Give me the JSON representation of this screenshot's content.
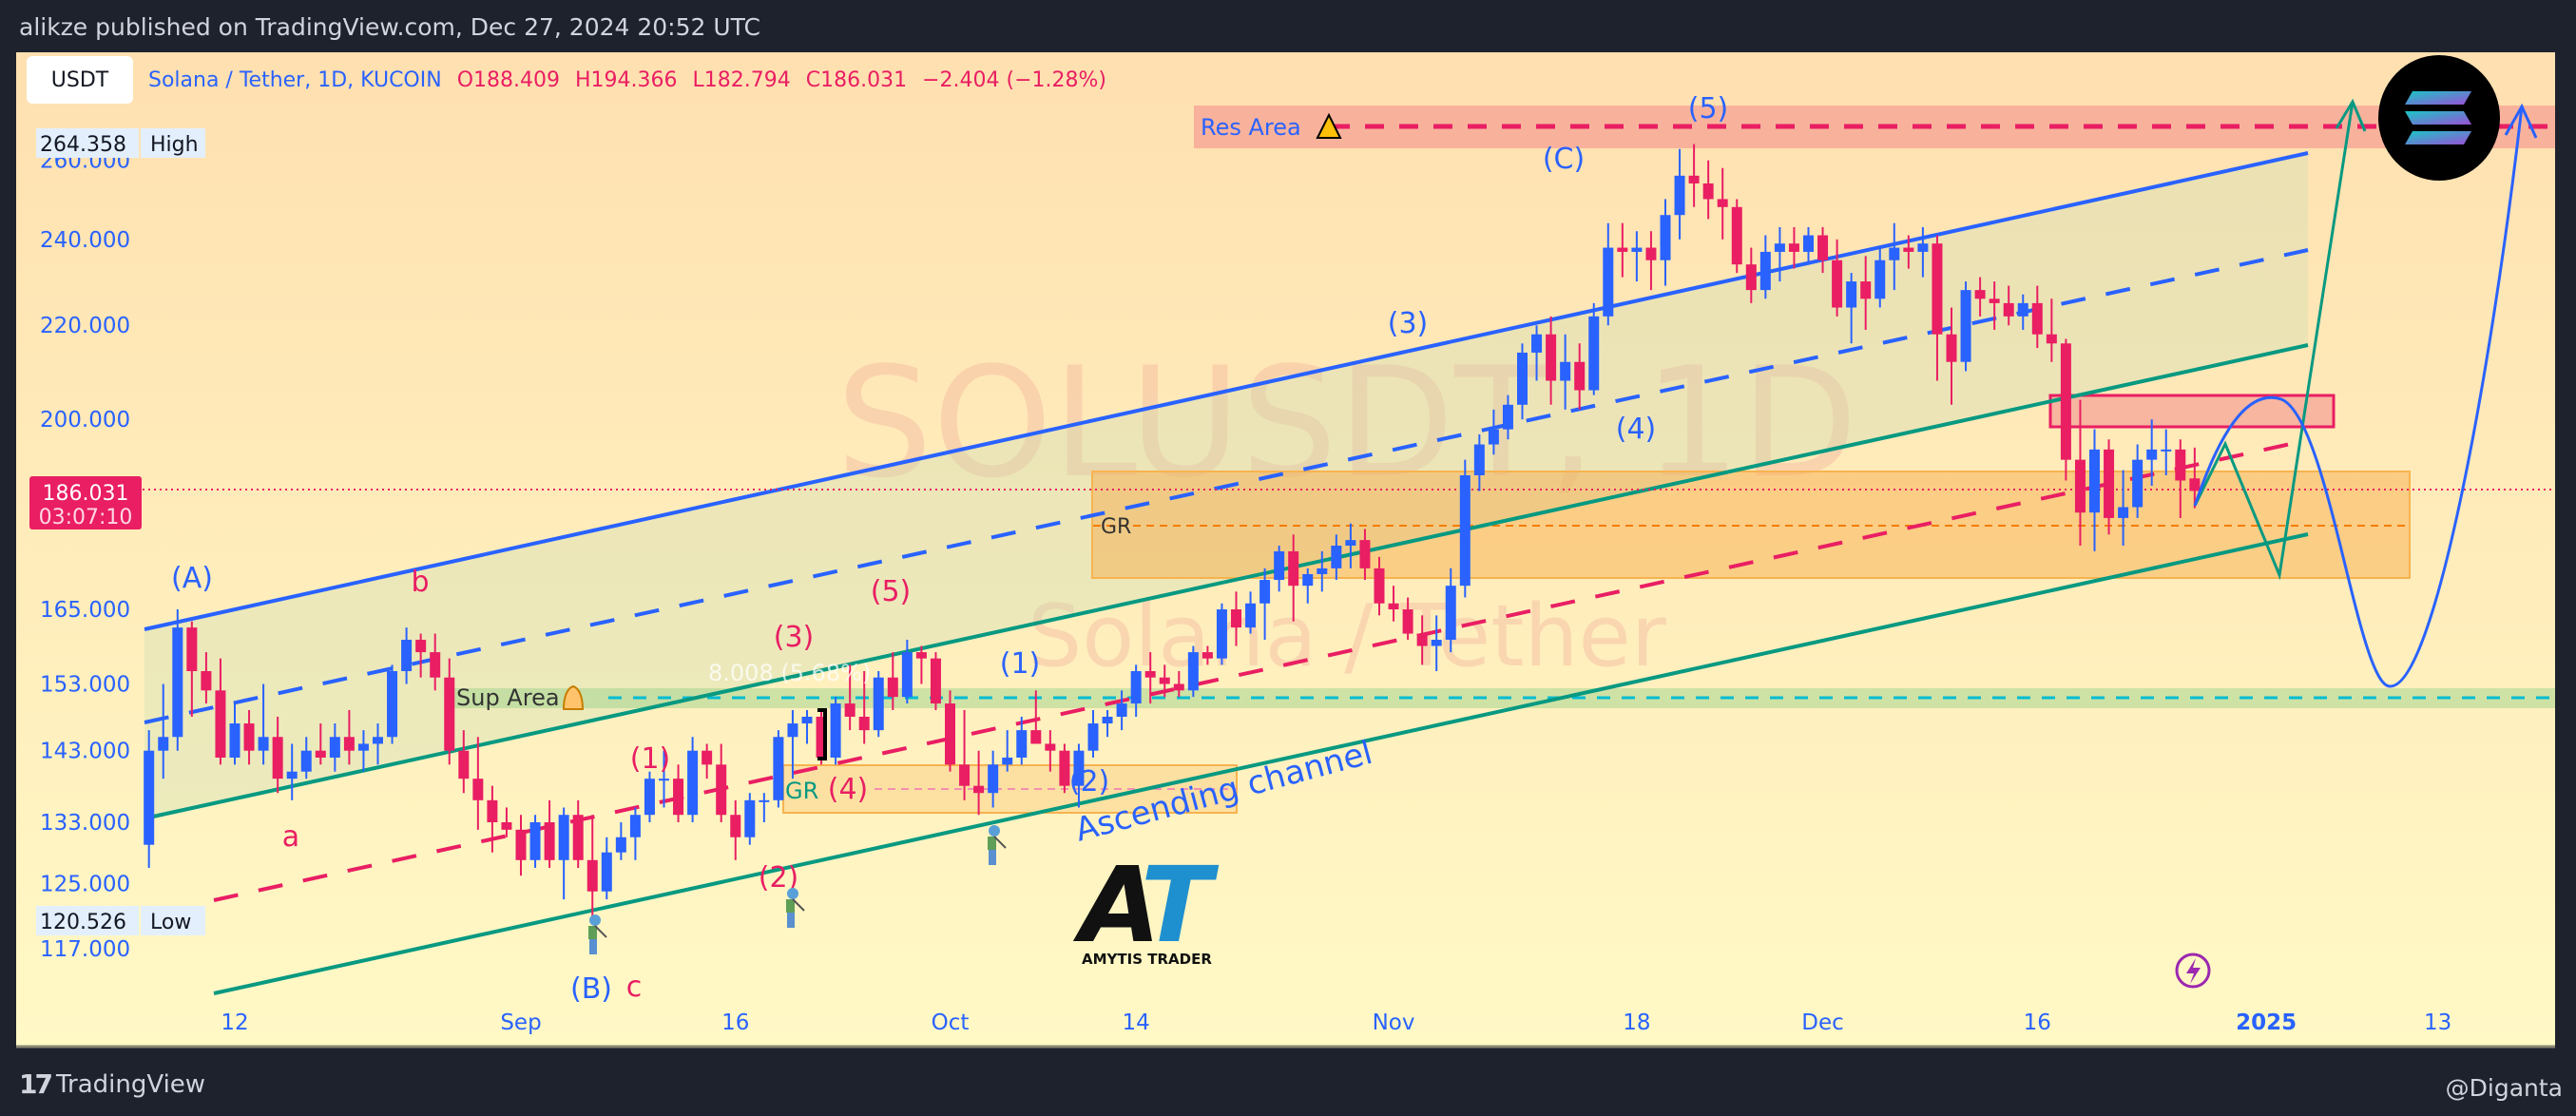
{
  "header": {
    "title": "alikze published on TradingView.com, Dec 27, 2024 20:52 UTC",
    "currency": "USDT",
    "symbol": "Solana / Tether, 1D, KUCOIN",
    "open": "O188.409",
    "high": "H194.366",
    "low": "L182.794",
    "close": "C186.031",
    "change": "−2.404 (−1.28%)"
  },
  "price_scale": {
    "high_value": "264.358",
    "high_label": "High",
    "low_value": "120.526",
    "low_label": "Low",
    "last_price": "186.031",
    "countdown": "03:07:10"
  },
  "watermark": {
    "symbol": "SOLUSDT, 1D",
    "name": "Solana / Tether"
  },
  "annotations": {
    "res_area": "Res Area",
    "sup_area": "Sup Area",
    "gr_upper": "GR",
    "gr_lower": "GR",
    "ascending_channel": "Ascending channel",
    "measure": "8.008 (5.68%)",
    "waves": {
      "A": "(A)",
      "b": "b",
      "a": "a",
      "B": "(B)",
      "c": "c",
      "r1": "(1)",
      "r2": "(2)",
      "r3": "(3)",
      "r4": "(4)",
      "r5": "(5)",
      "b1": "(1)",
      "b2": "(2)",
      "b3": "(3)",
      "b4": "(4)",
      "b5": "(5)",
      "C": "(C)"
    },
    "logo_text": "AMYTIS TRADER"
  },
  "footer": {
    "brand": "TradingView",
    "user": "@Diganta"
  },
  "colors": {
    "up": "#2962ff",
    "down": "#e91e63",
    "channel_blue": "#2962ff",
    "channel_green": "#089981"
  },
  "chart_data": {
    "type": "candlestick",
    "title": "Solana / Tether, 1D, KUCOIN",
    "start_date": "2024-08-06",
    "scale": "log",
    "ylim": [
      112,
      272
    ],
    "y_ticks": [
      260,
      240,
      220,
      200,
      165,
      153,
      143,
      133,
      125,
      117
    ],
    "x_ticks": [
      {
        "label": "12",
        "date": "2024-08-12"
      },
      {
        "label": "Sep",
        "date": "2024-09-01"
      },
      {
        "label": "16",
        "date": "2024-09-16"
      },
      {
        "label": "Oct",
        "date": "2024-10-01"
      },
      {
        "label": "14",
        "date": "2024-10-14"
      },
      {
        "label": "Nov",
        "date": "2024-11-01"
      },
      {
        "label": "18",
        "date": "2024-11-18"
      },
      {
        "label": "Dec",
        "date": "2024-12-01"
      },
      {
        "label": "16",
        "date": "2024-12-16"
      },
      {
        "label": "2025",
        "date": "2025-01-01"
      },
      {
        "label": "13",
        "date": "2025-01-13"
      }
    ],
    "ohlc": [
      [
        130,
        146,
        127,
        143
      ],
      [
        143,
        153,
        139,
        145
      ],
      [
        145,
        165,
        143,
        162
      ],
      [
        162,
        163,
        148,
        155
      ],
      [
        155,
        158,
        150,
        152
      ],
      [
        152,
        157,
        141,
        142
      ],
      [
        142,
        150,
        141,
        147
      ],
      [
        147,
        149,
        141,
        143
      ],
      [
        143,
        153,
        141,
        145
      ],
      [
        145,
        148,
        137,
        139
      ],
      [
        139,
        144,
        136,
        140
      ],
      [
        140,
        145,
        139,
        143
      ],
      [
        143,
        147,
        141,
        142
      ],
      [
        142,
        147,
        140,
        145
      ],
      [
        145,
        149,
        141,
        143
      ],
      [
        143,
        146,
        140,
        144
      ],
      [
        144,
        147,
        141,
        145
      ],
      [
        145,
        156,
        144,
        155
      ],
      [
        155,
        162,
        153,
        160
      ],
      [
        160,
        161,
        154,
        158
      ],
      [
        158,
        161,
        152,
        154
      ],
      [
        154,
        157,
        141,
        143
      ],
      [
        143,
        146,
        137,
        139
      ],
      [
        139,
        145,
        132,
        136
      ],
      [
        136,
        138,
        129,
        133
      ],
      [
        133,
        135,
        131,
        132
      ],
      [
        132,
        134,
        126,
        128
      ],
      [
        128,
        134,
        127,
        133
      ],
      [
        133,
        136,
        127,
        128
      ],
      [
        128,
        135,
        123,
        134
      ],
      [
        134,
        136,
        127,
        128
      ],
      [
        128,
        134,
        120.526,
        124
      ],
      [
        124,
        131,
        123,
        129
      ],
      [
        129,
        133,
        128,
        131
      ],
      [
        131,
        135,
        128,
        134
      ],
      [
        134,
        140,
        133,
        139
      ],
      [
        139,
        143,
        135,
        139
      ],
      [
        139,
        141,
        133,
        134
      ],
      [
        134,
        145,
        133,
        143
      ],
      [
        143,
        144,
        139,
        141
      ],
      [
        141,
        144,
        133,
        134
      ],
      [
        134,
        136,
        128,
        131
      ],
      [
        131,
        137,
        130,
        136
      ],
      [
        136,
        137,
        133,
        136
      ],
      [
        136,
        146,
        135,
        145
      ],
      [
        145,
        149,
        139,
        147
      ],
      [
        147,
        149,
        144,
        148
      ],
      [
        148,
        149,
        141,
        142
      ],
      [
        142,
        151,
        141,
        150
      ],
      [
        150,
        156,
        146,
        148
      ],
      [
        148,
        155,
        144,
        146
      ],
      [
        146,
        155,
        145,
        154
      ],
      [
        154,
        158,
        149,
        151
      ],
      [
        151,
        160,
        150,
        158
      ],
      [
        158,
        159,
        153,
        157
      ],
      [
        157,
        158,
        149,
        150
      ],
      [
        150,
        152,
        140,
        141
      ],
      [
        141,
        149,
        136,
        138
      ],
      [
        138,
        143,
        134,
        137
      ],
      [
        137,
        143,
        135,
        141
      ],
      [
        141,
        146,
        140,
        142
      ],
      [
        142,
        148,
        141,
        146
      ],
      [
        146,
        152,
        144,
        144
      ],
      [
        144,
        146,
        140,
        143
      ],
      [
        143,
        144,
        137,
        138
      ],
      [
        138,
        144,
        135,
        143
      ],
      [
        143,
        149,
        142,
        147
      ],
      [
        147,
        149,
        145,
        148
      ],
      [
        148,
        152,
        146,
        150
      ],
      [
        150,
        156,
        148,
        155
      ],
      [
        155,
        158,
        150,
        154
      ],
      [
        154,
        156,
        151,
        153
      ],
      [
        153,
        155,
        151,
        152
      ],
      [
        152,
        159,
        151,
        158
      ],
      [
        158,
        159,
        156,
        157
      ],
      [
        157,
        166,
        156,
        165
      ],
      [
        165,
        168,
        159,
        162
      ],
      [
        162,
        168,
        161,
        166
      ],
      [
        166,
        172,
        160,
        170
      ],
      [
        170,
        176,
        168,
        175
      ],
      [
        175,
        178,
        163,
        169
      ],
      [
        169,
        172,
        166,
        171
      ],
      [
        171,
        175,
        168,
        172
      ],
      [
        172,
        178,
        170,
        176
      ],
      [
        176,
        180,
        172,
        177
      ],
      [
        177,
        179,
        170,
        172
      ],
      [
        172,
        174,
        164,
        166
      ],
      [
        166,
        169,
        163,
        165
      ],
      [
        165,
        167,
        160,
        161
      ],
      [
        161,
        164,
        156,
        159
      ],
      [
        159,
        164,
        155,
        160
      ],
      [
        160,
        172,
        158,
        169
      ],
      [
        169,
        192,
        167,
        189
      ],
      [
        189,
        197,
        186,
        195
      ],
      [
        195,
        202,
        193,
        198
      ],
      [
        198,
        205,
        196,
        203
      ],
      [
        203,
        216,
        200,
        214
      ],
      [
        214,
        220,
        208,
        218
      ],
      [
        218,
        222,
        203,
        208
      ],
      [
        208,
        218,
        202,
        212
      ],
      [
        212,
        216,
        202,
        206
      ],
      [
        206,
        225,
        205,
        222
      ],
      [
        222,
        244,
        220,
        238
      ],
      [
        238,
        244,
        231,
        237
      ],
      [
        237,
        242,
        230,
        238
      ],
      [
        238,
        242,
        228,
        235
      ],
      [
        235,
        250,
        229,
        246
      ],
      [
        246,
        263,
        240,
        256
      ],
      [
        256,
        264.358,
        248,
        254
      ],
      [
        254,
        260,
        245,
        250
      ],
      [
        250,
        258,
        240,
        248
      ],
      [
        248,
        250,
        232,
        234
      ],
      [
        234,
        238,
        225,
        228
      ],
      [
        228,
        241,
        226,
        237
      ],
      [
        237,
        243,
        230,
        239
      ],
      [
        239,
        243,
        233,
        237
      ],
      [
        237,
        243,
        234,
        241
      ],
      [
        241,
        243,
        232,
        235
      ],
      [
        235,
        240,
        222,
        224
      ],
      [
        224,
        232,
        216,
        230
      ],
      [
        230,
        236,
        219,
        226
      ],
      [
        226,
        238,
        224,
        235
      ],
      [
        235,
        244,
        228,
        238
      ],
      [
        238,
        241,
        233,
        237
      ],
      [
        237,
        243,
        231,
        239
      ],
      [
        239,
        241,
        208,
        218
      ],
      [
        218,
        224,
        203,
        212
      ],
      [
        212,
        230,
        210,
        228
      ],
      [
        228,
        231,
        222,
        226
      ],
      [
        226,
        230,
        219,
        225
      ],
      [
        225,
        229,
        220,
        222
      ],
      [
        222,
        227,
        219,
        225
      ],
      [
        225,
        229,
        215,
        218
      ],
      [
        218,
        226,
        212,
        216
      ],
      [
        216,
        217,
        188,
        192
      ],
      [
        192,
        204,
        176,
        182
      ],
      [
        182,
        198,
        175,
        194
      ],
      [
        194,
        196,
        178,
        181
      ],
      [
        181,
        190,
        176,
        183
      ],
      [
        183,
        195,
        181,
        192
      ],
      [
        192,
        200,
        187,
        194
      ],
      [
        194,
        198,
        189,
        194
      ],
      [
        194,
        196,
        181,
        188
      ],
      [
        188.409,
        194.366,
        182.794,
        186.031
      ]
    ]
  }
}
